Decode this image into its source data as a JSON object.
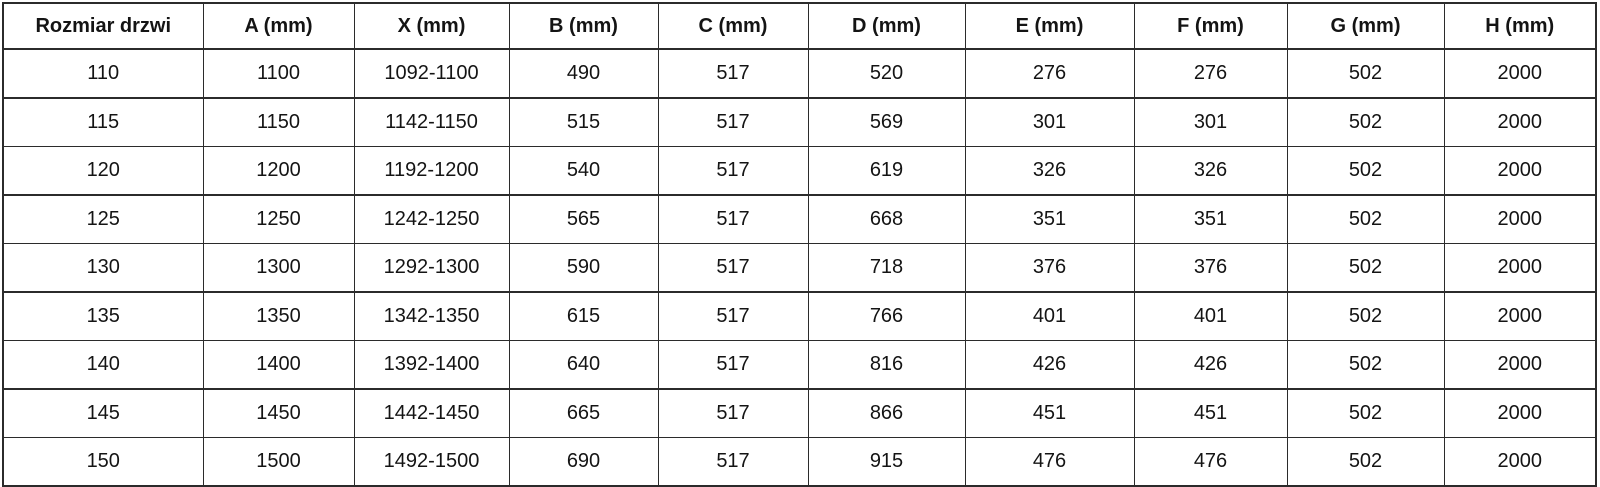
{
  "chart_data": {
    "type": "table",
    "columns": [
      "Rozmiar drzwi",
      "A (mm)",
      "X (mm)",
      "B (mm)",
      "C (mm)",
      "D (mm)",
      "E (mm)",
      "F (mm)",
      "G (mm)",
      "H (mm)"
    ],
    "rows": [
      [
        "110",
        "1100",
        "1092-1100",
        "490",
        "517",
        "520",
        "276",
        "276",
        "502",
        "2000"
      ],
      [
        "115",
        "1150",
        "1142-1150",
        "515",
        "517",
        "569",
        "301",
        "301",
        "502",
        "2000"
      ],
      [
        "120",
        "1200",
        "1192-1200",
        "540",
        "517",
        "619",
        "326",
        "326",
        "502",
        "2000"
      ],
      [
        "125",
        "1250",
        "1242-1250",
        "565",
        "517",
        "668",
        "351",
        "351",
        "502",
        "2000"
      ],
      [
        "130",
        "1300",
        "1292-1300",
        "590",
        "517",
        "718",
        "376",
        "376",
        "502",
        "2000"
      ],
      [
        "135",
        "1350",
        "1342-1350",
        "615",
        "517",
        "766",
        "401",
        "401",
        "502",
        "2000"
      ],
      [
        "140",
        "1400",
        "1392-1400",
        "640",
        "517",
        "816",
        "426",
        "426",
        "502",
        "2000"
      ],
      [
        "145",
        "1450",
        "1442-1450",
        "665",
        "517",
        "866",
        "451",
        "451",
        "502",
        "2000"
      ],
      [
        "150",
        "1500",
        "1492-1500",
        "690",
        "517",
        "915",
        "476",
        "476",
        "502",
        "2000"
      ]
    ],
    "border_color": "#2b2b2b",
    "text_color": "#141414",
    "background_color": "#ffffff"
  }
}
